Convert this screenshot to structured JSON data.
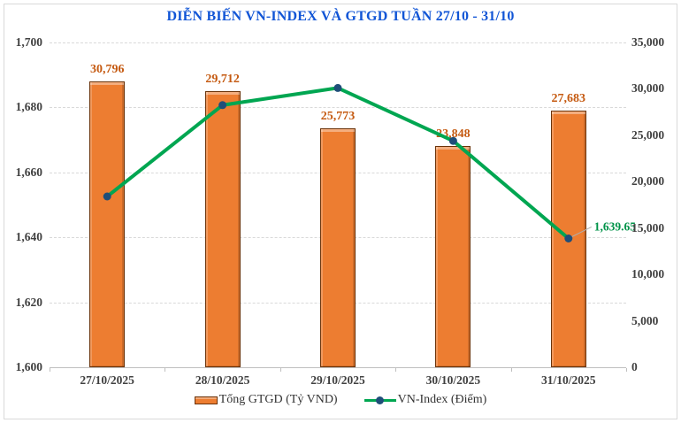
{
  "chart_data": {
    "type": "bar+line",
    "title": "DIỄN BIẾN VN-INDEX VÀ GTGD TUẦN 27/10 - 31/10",
    "categories": [
      "27/10/2025",
      "28/10/2025",
      "29/10/2025",
      "30/10/2025",
      "31/10/2025"
    ],
    "series": [
      {
        "name": "Tổng GTGD (Tỷ VND)",
        "type": "bar",
        "axis": "right",
        "values": [
          30796,
          29712,
          25773,
          23848,
          27683
        ],
        "data_labels": [
          "30,796",
          "29,712",
          "25,773",
          "23,848",
          "27,683"
        ],
        "color": "#ED7D31"
      },
      {
        "name": "VN-Index (Điểm)",
        "type": "line",
        "axis": "left",
        "values": [
          1652.6,
          1680.7,
          1686.0,
          1669.7,
          1639.65
        ],
        "annotation": {
          "index": 4,
          "text": "1,639.65"
        },
        "color": "#00A651",
        "marker_color": "#1F4E79"
      }
    ],
    "left_axis": {
      "min": 1600,
      "max": 1700,
      "step": 20,
      "tick_labels": [
        "1,700",
        "1,680",
        "1,660",
        "1,640",
        "1,620",
        "1,600"
      ]
    },
    "right_axis": {
      "min": 0,
      "max": 35000,
      "step": 5000,
      "tick_labels": [
        "35,000",
        "30,000",
        "25,000",
        "20,000",
        "15,000",
        "10,000",
        "5,000",
        "0"
      ]
    },
    "legend": {
      "position": "bottom",
      "items": [
        {
          "label": "Tổng GTGD (Tỷ VND)",
          "swatch": "bar"
        },
        {
          "label": "VN-Index (Điểm)",
          "swatch": "line-marker"
        }
      ]
    },
    "grid": {
      "horizontal": true,
      "style": "dashed"
    },
    "colors": {
      "title": "#1155D6",
      "bar_fill": "#ED7D31",
      "bar_border": "#6B3309",
      "bar_label": "#C55A11",
      "line": "#00A651",
      "marker": "#1F4E79",
      "annotation_text": "#009349",
      "leader_line": "#AFAFAF",
      "axis_text": "#404040",
      "gridline": "#D9D9D9",
      "axis_line": "#BFBFBF",
      "frame_border": "#D9D9D9",
      "background": "#FFFFFF"
    }
  }
}
